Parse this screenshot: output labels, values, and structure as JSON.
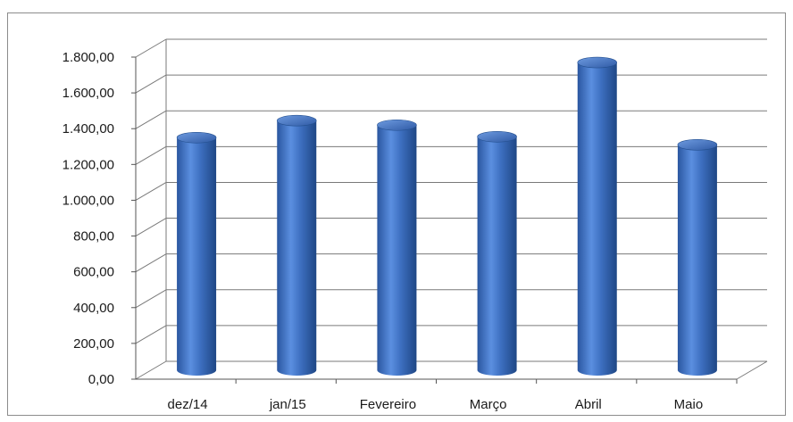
{
  "chart_data": {
    "type": "bar",
    "style": "3d-cylinder",
    "title": "",
    "xlabel": "",
    "ylabel": "",
    "categories": [
      "dez/14",
      "jan/15",
      "Fevereiro",
      "Março",
      "Abril",
      "Maio"
    ],
    "values": [
      1300,
      1395,
      1370,
      1305,
      1720,
      1260
    ],
    "ylim": [
      0,
      1800
    ],
    "ytick_step": 200,
    "ytick_labels": [
      "0,00",
      "200,00",
      "400,00",
      "600,00",
      "800,00",
      "1.000,00",
      "1.200,00",
      "1.400,00",
      "1.600,00",
      "1.800,00"
    ],
    "grid": true,
    "legend": "none",
    "bar_color": "#3f74c4",
    "grid_color": "#7a7a7a"
  }
}
